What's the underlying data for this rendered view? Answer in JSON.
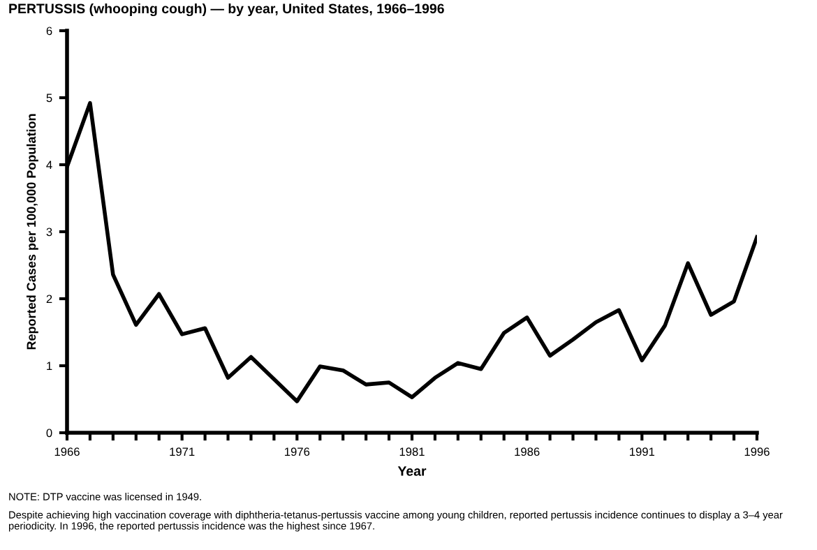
{
  "chart_data": {
    "type": "line",
    "title": "PERTUSSIS (whooping cough) — by year, United States, 1966–1996",
    "xlabel": "Year",
    "ylabel": "Reported Cases per 100,000 Population",
    "x": [
      1966,
      1967,
      1968,
      1969,
      1970,
      1971,
      1972,
      1973,
      1974,
      1975,
      1976,
      1977,
      1978,
      1979,
      1980,
      1981,
      1982,
      1983,
      1984,
      1985,
      1986,
      1987,
      1988,
      1989,
      1990,
      1991,
      1992,
      1993,
      1994,
      1995,
      1996
    ],
    "series": [
      {
        "color": "#000000",
        "values": [
          3.97,
          4.92,
          2.36,
          1.61,
          2.07,
          1.47,
          1.56,
          0.82,
          1.13,
          0.8,
          0.47,
          0.99,
          0.93,
          0.72,
          0.75,
          0.53,
          0.82,
          1.04,
          0.95,
          1.49,
          1.72,
          1.15,
          1.39,
          1.65,
          1.83,
          1.08,
          1.6,
          2.53,
          1.76,
          1.96,
          2.92
        ]
      }
    ],
    "xlim": [
      1966,
      1996
    ],
    "xticks": [
      1966,
      {
        "value": 1967,
        "label": null
      },
      {
        "value": 1968,
        "label": null
      },
      {
        "value": 1969,
        "label": null
      },
      {
        "value": 1970,
        "label": null
      },
      1971,
      {
        "value": 1972,
        "label": null
      },
      {
        "value": 1973,
        "label": null
      },
      {
        "value": 1974,
        "label": null
      },
      {
        "value": 1975,
        "label": null
      },
      1976,
      {
        "value": 1977,
        "label": null
      },
      {
        "value": 1978,
        "label": null
      },
      {
        "value": 1979,
        "label": null
      },
      {
        "value": 1980,
        "label": null
      },
      1981,
      {
        "value": 1982,
        "label": null
      },
      {
        "value": 1983,
        "label": null
      },
      {
        "value": 1984,
        "label": null
      },
      {
        "value": 1985,
        "label": null
      },
      1986,
      {
        "value": 1987,
        "label": null
      },
      {
        "value": 1988,
        "label": null
      },
      {
        "value": 1989,
        "label": null
      },
      {
        "value": 1990,
        "label": null
      },
      1991,
      {
        "value": 1992,
        "label": null
      },
      {
        "value": 1993,
        "label": null
      },
      {
        "value": 1994,
        "label": null
      },
      {
        "value": 1995,
        "label": null
      },
      1996
    ],
    "ylim": [
      0,
      6
    ],
    "yticks": [
      0,
      1,
      2,
      3,
      4,
      5,
      6
    ],
    "grid": false,
    "legend": false,
    "marker": "none",
    "line_style": "solid",
    "annotations": [
      "NOTE: DTP vaccine was licensed in 1949.",
      "Despite achieving high vaccination coverage with diphtheria-tetanus-pertussis vaccine among young children, reported pertussis incidence continues to display a 3–4 year periodicity. In 1996, the reported pertussis incidence was the highest since 1967."
    ]
  }
}
